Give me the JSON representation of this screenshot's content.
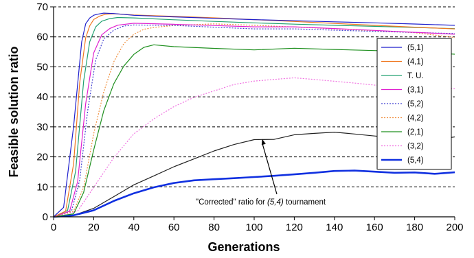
{
  "chart_data": {
    "type": "line",
    "xlabel": "Generations",
    "ylabel": "Feasible solution ratio",
    "xlim": [
      0,
      200
    ],
    "ylim": [
      0,
      70
    ],
    "xticks": [
      "0",
      "20",
      "40",
      "60",
      "80",
      "100",
      "120",
      "140",
      "160",
      "180",
      "200"
    ],
    "yticks": [
      "0",
      "10",
      "20",
      "30",
      "40",
      "50",
      "60",
      "70"
    ],
    "grid": "horizontal dashed",
    "legend_position": "right",
    "annotation": {
      "prefix": "\"Corrected\" ratio for ",
      "emphasis": "(5,4)",
      "suffix": " tournament",
      "arrow_to": [
        104,
        26
      ]
    },
    "series": [
      {
        "name": "(5,1)",
        "color": "#1f1fcc",
        "style": "solid",
        "x": [
          0,
          5,
          10,
          14,
          16,
          18,
          20,
          22,
          25,
          30,
          40,
          60,
          80,
          100,
          120,
          140,
          160,
          180,
          200
        ],
        "y": [
          0,
          3,
          30,
          58,
          64,
          66,
          67,
          67.5,
          68,
          68,
          67.5,
          67,
          66.5,
          66,
          65.5,
          65,
          64.5,
          64,
          63.5
        ]
      },
      {
        "name": "(4,1)",
        "color": "#f07820",
        "style": "solid",
        "x": [
          0,
          6,
          10,
          13,
          16,
          18,
          20,
          23,
          26,
          30,
          40,
          60,
          80,
          100,
          120,
          140,
          160,
          180,
          200
        ],
        "y": [
          0,
          2,
          18,
          45,
          60,
          64,
          66,
          67,
          67.5,
          67.5,
          67,
          66.5,
          66,
          65.5,
          65,
          64.5,
          64,
          63.5,
          63
        ]
      },
      {
        "name": "T. U.",
        "color": "#20a070",
        "style": "solid",
        "x": [
          0,
          7,
          11,
          15,
          18,
          21,
          24,
          28,
          32,
          40,
          60,
          80,
          100,
          120,
          140,
          160,
          180,
          200
        ],
        "y": [
          0,
          2,
          15,
          45,
          58,
          63,
          65,
          66,
          66.5,
          66.5,
          66,
          65.5,
          65,
          64.5,
          64,
          63.5,
          63,
          62.5
        ]
      },
      {
        "name": "(3,1)",
        "color": "#e020d0",
        "style": "solid",
        "x": [
          0,
          8,
          12,
          16,
          20,
          24,
          28,
          32,
          40,
          60,
          80,
          100,
          120,
          140,
          160,
          180,
          200
        ],
        "y": [
          0,
          2,
          12,
          38,
          55,
          61,
          63,
          64,
          64.5,
          64,
          63.5,
          63,
          63,
          62.5,
          62,
          61.5,
          61
        ]
      },
      {
        "name": "(5,2)",
        "color": "#4040d0",
        "style": "dotted",
        "x": [
          0,
          9,
          13,
          17,
          21,
          25,
          30,
          35,
          40,
          60,
          80,
          100,
          120,
          140,
          160,
          180,
          200
        ],
        "y": [
          0,
          2,
          12,
          35,
          52,
          59,
          62,
          63.5,
          64,
          64,
          63.5,
          63,
          63,
          62.5,
          62,
          61.5,
          61
        ]
      },
      {
        "name": "(4,2)",
        "color": "#f09040",
        "style": "dotted",
        "x": [
          0,
          10,
          15,
          20,
          25,
          30,
          35,
          40,
          45,
          50,
          60,
          80,
          100,
          120,
          140,
          160,
          180,
          200
        ],
        "y": [
          0,
          2,
          10,
          28,
          42,
          52,
          58,
          61,
          62.5,
          63,
          63.5,
          64,
          63.5,
          63,
          62.5,
          62,
          61.5,
          60
        ]
      },
      {
        "name": "(2,1)",
        "color": "#209020",
        "style": "solid",
        "x": [
          0,
          10,
          15,
          20,
          25,
          30,
          35,
          40,
          45,
          50,
          60,
          80,
          100,
          120,
          140,
          160,
          180,
          200
        ],
        "y": [
          0,
          1,
          8,
          22,
          35,
          44,
          50,
          54,
          56.5,
          57.5,
          57,
          56.5,
          56,
          56.5,
          56,
          55.5,
          55,
          54
        ]
      },
      {
        "name": "(3,2)",
        "color": "#f070e0",
        "style": "dotted",
        "x": [
          0,
          12,
          20,
          30,
          40,
          50,
          60,
          70,
          80,
          90,
          100,
          110,
          120,
          130,
          140,
          150,
          160,
          180,
          200
        ],
        "y": [
          0,
          2,
          10,
          20,
          28,
          33,
          37,
          40,
          42,
          44,
          45,
          45.5,
          46,
          45.5,
          45,
          44.5,
          44,
          43.5,
          43
        ]
      },
      {
        "name": "(5,4)",
        "color": "#1030e0",
        "style": "bold",
        "x": [
          0,
          10,
          20,
          30,
          40,
          50,
          60,
          70,
          80,
          90,
          100,
          110,
          120,
          130,
          140,
          150,
          160,
          170,
          180,
          190,
          200
        ],
        "y": [
          0,
          0.5,
          2,
          5,
          7.5,
          9.5,
          11,
          12,
          12.5,
          13,
          13.5,
          14,
          14.5,
          15,
          15.5,
          15.5,
          15,
          14.5,
          14.5,
          14,
          14.5
        ]
      },
      {
        "color": "#202020",
        "style": "solid",
        "x": [
          0,
          10,
          20,
          30,
          40,
          50,
          60,
          70,
          80,
          90,
          100,
          110,
          120,
          130,
          140,
          150,
          160,
          170,
          180,
          190,
          200
        ],
        "y": [
          0,
          0.5,
          3,
          7,
          11,
          14,
          17,
          19.5,
          22,
          24,
          25.5,
          25.5,
          27,
          27.5,
          28,
          27.5,
          27,
          26.5,
          26.5,
          26,
          27
        ]
      }
    ]
  }
}
